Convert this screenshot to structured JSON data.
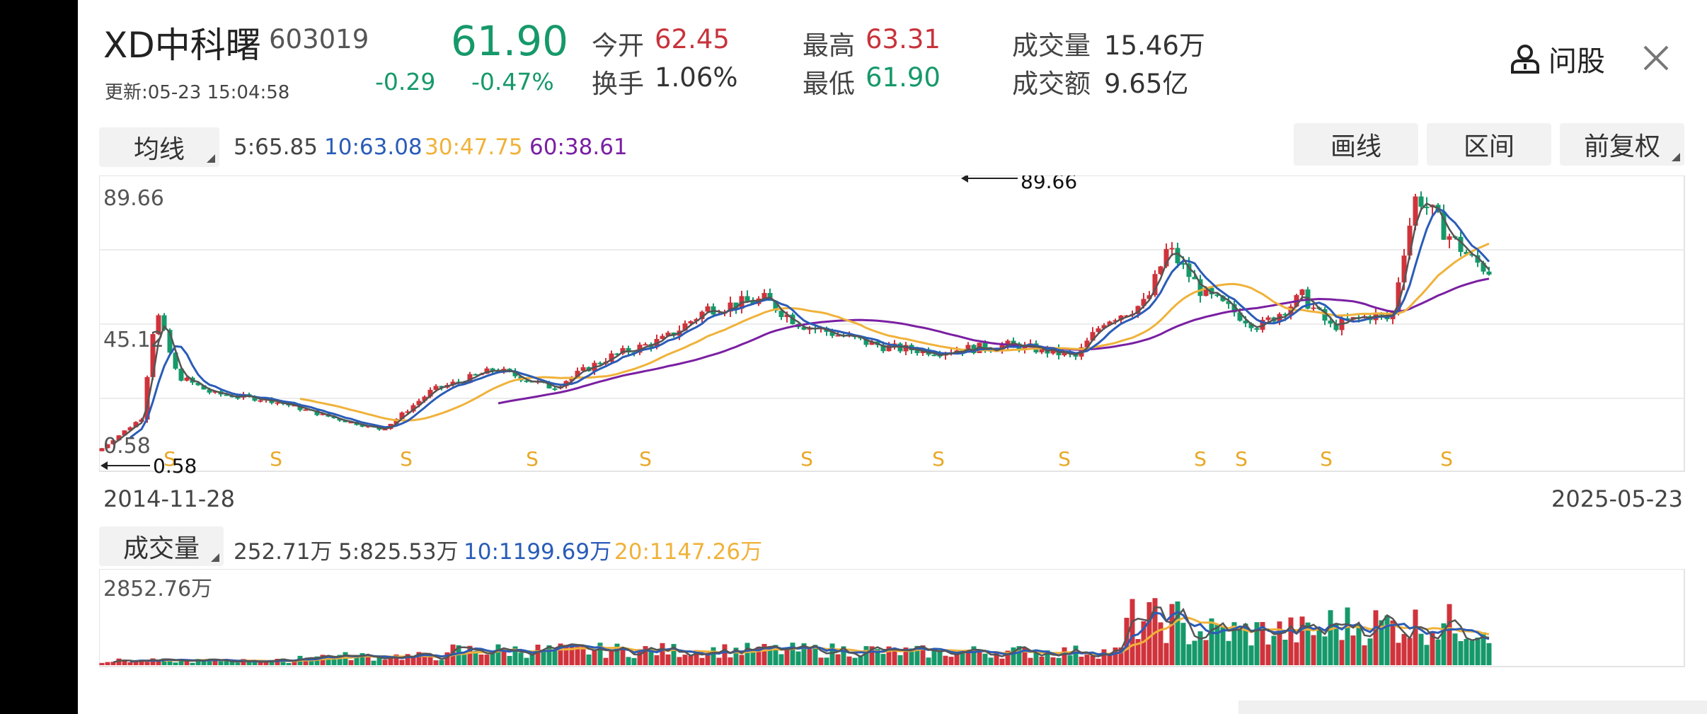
{
  "header": {
    "stock_name": "XD中科曙",
    "stock_code": "603019",
    "price": "61.90",
    "updated": "更新:05-23 15:04:58",
    "change": "-0.29",
    "change_pct": "-0.47%",
    "open_label": "今开",
    "open_value": "62.45",
    "turnover_label": "换手",
    "turnover_value": "1.06%",
    "high_label": "最高",
    "high_value": "63.31",
    "low_label": "最低",
    "low_value": "61.90",
    "volume_label": "成交量",
    "volume_value": "15.46万",
    "amount_label": "成交额",
    "amount_value": "9.65亿",
    "ask_label": "问股"
  },
  "toolbar": {
    "ma_button": "均线",
    "ma5": "5:65.85",
    "ma10": "10:63.08",
    "ma30": "30:47.75",
    "ma60": "60:38.61",
    "draw_button": "画线",
    "range_button": "区间",
    "adjust_button": "前复权"
  },
  "price_chart": {
    "y_max_label": "89.66",
    "y_mid_label": "45.12",
    "y_min_label": "0.58",
    "max_marker": "89.66",
    "min_marker": "0.58",
    "start_date": "2014-11-28",
    "end_date": "2025-05-23",
    "signal_label": "S"
  },
  "volume_toolbar": {
    "vol_button": "成交量",
    "vol_value": "252.71万",
    "vol5": "5:825.53万",
    "vol10": "10:1199.69万",
    "vol20": "20:1147.26万",
    "y_max_label": "2852.76万"
  },
  "colors": {
    "up": "#d0333b",
    "down": "#16996a",
    "ma5": "#555555",
    "ma10": "#2a5cb8",
    "ma30": "#f0b23a",
    "ma60": "#7a1fa2",
    "signal": "#e9a826"
  },
  "chart_data": {
    "type": "candlestick",
    "x_range": [
      "2014-11-28",
      "2025-05-23"
    ],
    "y_range": [
      0.58,
      89.66
    ],
    "highlighted_max": 89.66,
    "highlighted_min": 0.58,
    "latest": {
      "open": 62.45,
      "high": 63.31,
      "low": 61.9,
      "close": 61.9
    },
    "moving_averages": [
      {
        "name": "5",
        "value": 65.85
      },
      {
        "name": "10",
        "value": 63.08
      },
      {
        "name": "30",
        "value": 47.75
      },
      {
        "name": "60",
        "value": 38.61
      }
    ],
    "volume": {
      "latest": "252.71万",
      "ma5": "825.53万",
      "ma10": "1199.69万",
      "ma20": "1147.26万",
      "y_max": "2852.76万"
    }
  }
}
